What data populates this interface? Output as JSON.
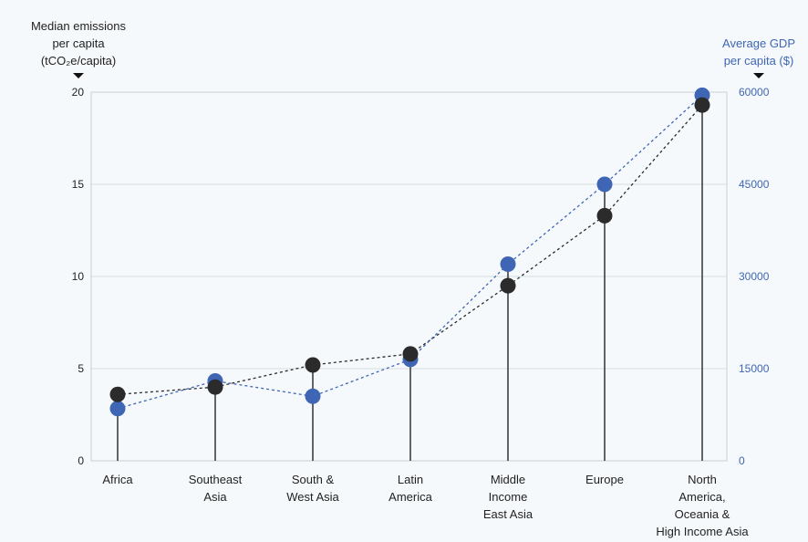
{
  "chart_data": {
    "type": "line",
    "categories": [
      [
        "Africa"
      ],
      [
        "Southeast",
        "Asia"
      ],
      [
        "South &",
        "West Asia"
      ],
      [
        "Latin",
        "America"
      ],
      [
        "Middle",
        "Income",
        "East Asia"
      ],
      [
        "Europe"
      ],
      [
        "North",
        "America,",
        "Oceania &",
        "High Income Asia"
      ]
    ],
    "left_axis": {
      "title": [
        "Median emissions",
        "per capita",
        "(tCO₂e/capita)"
      ],
      "ylim": [
        0,
        20
      ],
      "ticks": [
        "0",
        "5",
        "10",
        "15",
        "20"
      ]
    },
    "right_axis": {
      "title": [
        "Average GDP",
        "per capita ($)"
      ],
      "ylim": [
        0,
        60000
      ],
      "ticks": [
        "0",
        "15000",
        "30000",
        "45000",
        "60000"
      ]
    },
    "series": [
      {
        "axis": "left",
        "color": "#2b2b2b",
        "values": [
          3.6,
          4.0,
          5.2,
          5.8,
          9.5,
          13.3,
          19.3
        ]
      },
      {
        "axis": "right",
        "color": "#3f66b5",
        "values": [
          8500,
          13000,
          10500,
          16500,
          32000,
          45000,
          59500
        ]
      }
    ],
    "grid": true
  }
}
